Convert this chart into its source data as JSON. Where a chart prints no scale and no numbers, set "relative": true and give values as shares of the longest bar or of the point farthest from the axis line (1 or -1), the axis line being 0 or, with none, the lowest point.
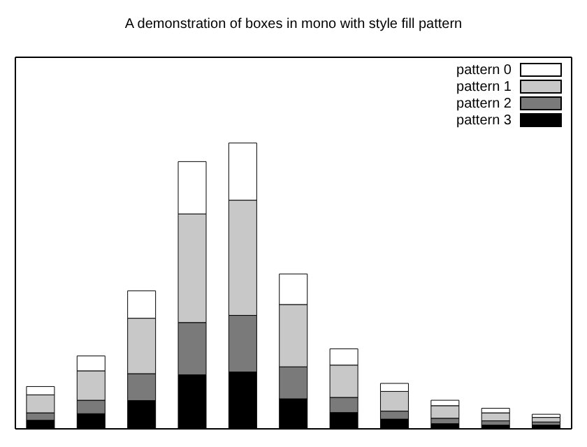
{
  "chart_data": {
    "type": "bar",
    "title": "A demonstration of boxes in mono with style fill pattern",
    "relative": true,
    "stacked": true,
    "legend": "top right",
    "categories": [
      null,
      null,
      null,
      null,
      null,
      null,
      null,
      null,
      null,
      null,
      null
    ],
    "series": [
      {
        "name": "pattern 3",
        "color": "#000000",
        "values": [
          0.03,
          0.053,
          0.099,
          0.189,
          0.199,
          0.105,
          0.057,
          0.034,
          0.018,
          0.013,
          0.013
        ]
      },
      {
        "name": "pattern 2",
        "color": "#7a7a7a",
        "values": [
          0.026,
          0.047,
          0.094,
          0.183,
          0.198,
          0.112,
          0.053,
          0.028,
          0.019,
          0.015,
          0.011
        ]
      },
      {
        "name": "pattern 1",
        "color": "#c8c8c8",
        "values": [
          0.063,
          0.103,
          0.194,
          0.38,
          0.403,
          0.218,
          0.113,
          0.069,
          0.044,
          0.028,
          0.016
        ]
      },
      {
        "name": "pattern 0",
        "color": "#ffffff",
        "values": [
          0.029,
          0.052,
          0.096,
          0.183,
          0.2,
          0.107,
          0.057,
          0.028,
          0.019,
          0.016,
          0.011
        ]
      }
    ]
  }
}
